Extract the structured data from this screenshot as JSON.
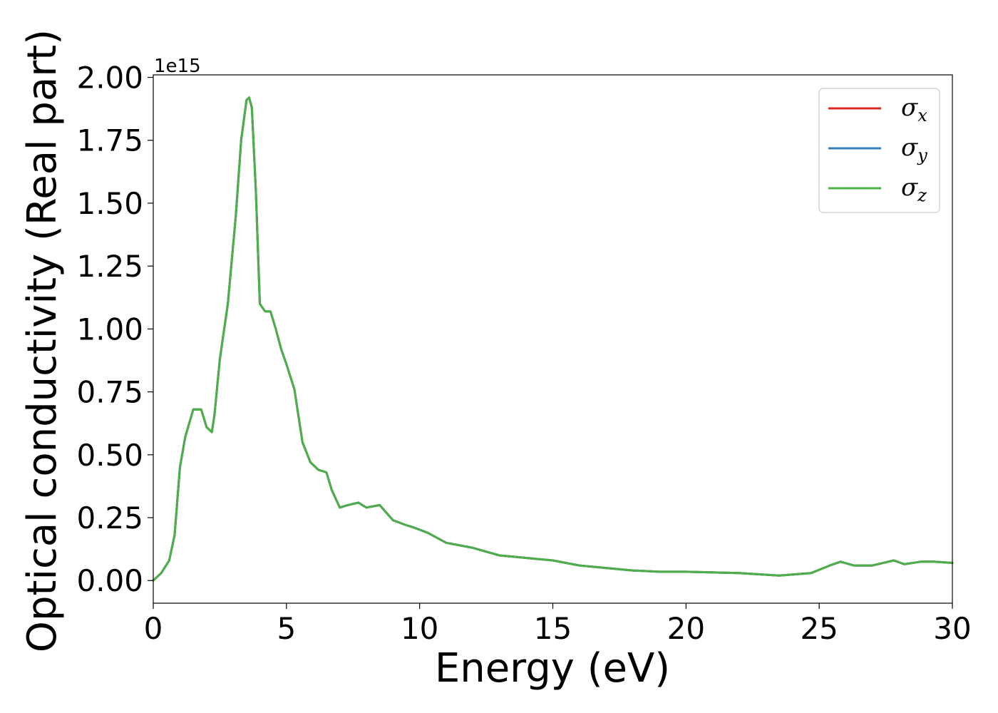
{
  "chart_data": {
    "type": "line",
    "xlabel": "Energy (eV)",
    "ylabel": "Optical conductivity (Real part)",
    "y_offset_label": "1e15",
    "xlim": [
      0,
      30
    ],
    "ylim": [
      -0.09,
      2.01
    ],
    "x_ticks": [
      0,
      5,
      10,
      15,
      20,
      25,
      30
    ],
    "x_tick_labels": [
      "0",
      "5",
      "10",
      "15",
      "20",
      "25",
      "30"
    ],
    "y_ticks": [
      0.0,
      0.25,
      0.5,
      0.75,
      1.0,
      1.25,
      1.5,
      1.75,
      2.0
    ],
    "y_tick_labels": [
      "0.00",
      "0.25",
      "0.50",
      "0.75",
      "1.00",
      "1.25",
      "1.50",
      "1.75",
      "2.00"
    ],
    "grid": false,
    "legend_position": "top-right",
    "x": [
      0,
      0.3,
      0.6,
      0.8,
      1.0,
      1.2,
      1.5,
      1.8,
      2.0,
      2.2,
      2.3,
      2.5,
      2.8,
      3.1,
      3.3,
      3.5,
      3.6,
      3.7,
      3.85,
      4.0,
      4.2,
      4.4,
      4.6,
      4.8,
      5.0,
      5.3,
      5.6,
      5.9,
      6.2,
      6.5,
      6.7,
      7.0,
      7.3,
      7.7,
      8.0,
      8.5,
      9.0,
      9.5,
      9.8,
      10.3,
      11.0,
      12.0,
      13.0,
      14.0,
      15.0,
      16.0,
      17.0,
      18.0,
      19.0,
      20.0,
      22.0,
      23.5,
      24.7,
      25.4,
      25.8,
      26.3,
      27.0,
      27.8,
      28.2,
      28.8,
      29.3,
      30.0
    ],
    "series": [
      {
        "name": "σx",
        "label_base": "σ",
        "label_sub": "x",
        "color": "#d62728",
        "values": [
          0.0,
          0.03,
          0.08,
          0.18,
          0.45,
          0.57,
          0.68,
          0.68,
          0.61,
          0.59,
          0.66,
          0.88,
          1.1,
          1.45,
          1.75,
          1.91,
          1.92,
          1.88,
          1.55,
          1.1,
          1.07,
          1.07,
          1.0,
          0.92,
          0.86,
          0.76,
          0.55,
          0.47,
          0.44,
          0.43,
          0.36,
          0.29,
          0.3,
          0.31,
          0.29,
          0.3,
          0.24,
          0.22,
          0.21,
          0.19,
          0.15,
          0.13,
          0.1,
          0.09,
          0.08,
          0.06,
          0.05,
          0.04,
          0.035,
          0.035,
          0.03,
          0.02,
          0.03,
          0.06,
          0.075,
          0.06,
          0.06,
          0.08,
          0.065,
          0.075,
          0.075,
          0.07
        ]
      },
      {
        "name": "σy",
        "label_base": "σ",
        "label_sub": "y",
        "color": "#377eb8",
        "values": [
          0.0,
          0.03,
          0.08,
          0.18,
          0.45,
          0.57,
          0.68,
          0.68,
          0.61,
          0.59,
          0.66,
          0.88,
          1.1,
          1.45,
          1.75,
          1.91,
          1.92,
          1.88,
          1.55,
          1.1,
          1.07,
          1.07,
          1.0,
          0.92,
          0.86,
          0.76,
          0.55,
          0.47,
          0.44,
          0.43,
          0.36,
          0.29,
          0.3,
          0.31,
          0.29,
          0.3,
          0.24,
          0.22,
          0.21,
          0.19,
          0.15,
          0.13,
          0.1,
          0.09,
          0.08,
          0.06,
          0.05,
          0.04,
          0.035,
          0.035,
          0.03,
          0.02,
          0.03,
          0.06,
          0.075,
          0.06,
          0.06,
          0.08,
          0.065,
          0.075,
          0.075,
          0.07
        ]
      },
      {
        "name": "σz",
        "label_base": "σ",
        "label_sub": "z",
        "color": "#4daf4a",
        "values": [
          0.0,
          0.03,
          0.08,
          0.18,
          0.45,
          0.57,
          0.68,
          0.68,
          0.61,
          0.59,
          0.66,
          0.88,
          1.1,
          1.45,
          1.75,
          1.91,
          1.92,
          1.88,
          1.55,
          1.1,
          1.07,
          1.07,
          1.0,
          0.92,
          0.86,
          0.76,
          0.55,
          0.47,
          0.44,
          0.43,
          0.36,
          0.29,
          0.3,
          0.31,
          0.29,
          0.3,
          0.24,
          0.22,
          0.21,
          0.19,
          0.15,
          0.13,
          0.1,
          0.09,
          0.08,
          0.06,
          0.05,
          0.04,
          0.035,
          0.035,
          0.03,
          0.02,
          0.03,
          0.06,
          0.075,
          0.06,
          0.06,
          0.08,
          0.065,
          0.075,
          0.075,
          0.07
        ]
      }
    ]
  }
}
